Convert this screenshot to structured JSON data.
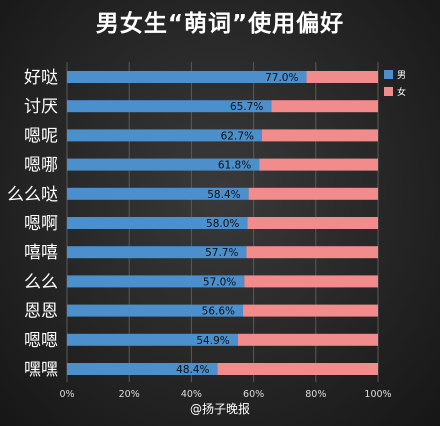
{
  "title": "男女生“萌词”使用偏好",
  "source": "@扬子晚报",
  "colors": {
    "male": "#4b8fcc",
    "female": "#f28b8b",
    "background": "#262626",
    "text": "#ffffff"
  },
  "chart_data": {
    "type": "bar",
    "orientation": "horizontal",
    "stacked": true,
    "percent_stacked": true,
    "title": "男女生“萌词”使用偏好",
    "categories": [
      "好哒",
      "讨厌",
      "嗯呢",
      "嗯哪",
      "么么哒",
      "嗯啊",
      "嘻嘻",
      "么么",
      "恩恩",
      "嗯嗯",
      "嘿嘿"
    ],
    "series": [
      {
        "name": "男",
        "values": [
          77.0,
          65.7,
          62.7,
          61.8,
          58.4,
          58.0,
          57.7,
          57.0,
          56.6,
          54.9,
          48.4
        ]
      },
      {
        "name": "女",
        "values": [
          23.0,
          34.3,
          37.3,
          38.2,
          41.6,
          42.0,
          42.3,
          43.0,
          43.4,
          45.1,
          51.6
        ]
      }
    ],
    "data_labels": [
      "77.0%",
      "65.7%",
      "62.7%",
      "61.8%",
      "58.4%",
      "58.0%",
      "57.7%",
      "57.0%",
      "56.6%",
      "54.9%",
      "48.4%"
    ],
    "x_ticks": [
      "0%",
      "20%",
      "40%",
      "60%",
      "80%",
      "100%"
    ],
    "xlim": [
      0,
      100
    ],
    "grid": true,
    "legend_position": "top-right"
  }
}
